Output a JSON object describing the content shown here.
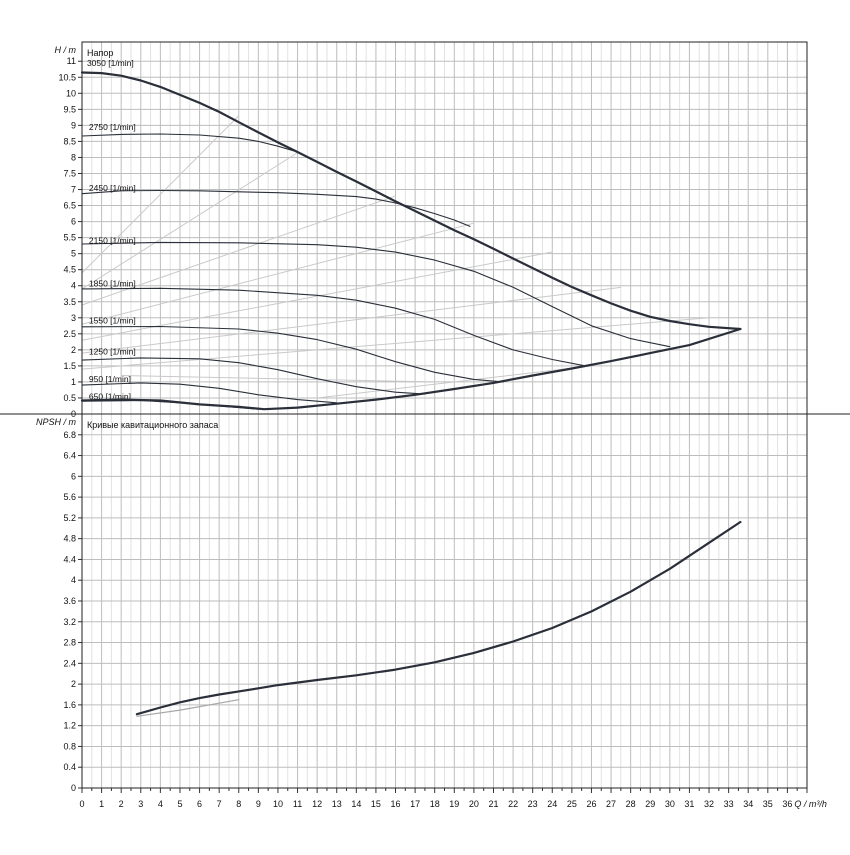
{
  "chart_data": [
    {
      "type": "line",
      "title": "Напор",
      "ylabel": "H / m",
      "xlabel": "Q / m³/h",
      "xlim": [
        0,
        37
      ],
      "ylim": [
        0,
        11.6
      ],
      "y_ticks": [
        0,
        0.5,
        1,
        1.5,
        2,
        2.5,
        3,
        3.5,
        4,
        4.5,
        5,
        5.5,
        6,
        6.5,
        7,
        7.5,
        8,
        8.5,
        9,
        9.5,
        10,
        10.5,
        11
      ],
      "grid": true,
      "series": [
        {
          "name": "3050 [1/min]",
          "label_at": [
            0.1,
            10.85
          ],
          "points": [
            [
              0,
              10.65
            ],
            [
              1,
              10.63
            ],
            [
              2,
              10.55
            ],
            [
              3,
              10.4
            ],
            [
              4,
              10.2
            ],
            [
              5,
              9.95
            ],
            [
              6,
              9.7
            ],
            [
              7,
              9.42
            ],
            [
              8,
              9.1
            ],
            [
              9,
              8.78
            ],
            [
              10,
              8.47
            ],
            [
              11,
              8.17
            ],
            [
              12,
              7.86
            ],
            [
              13,
              7.55
            ],
            [
              14,
              7.25
            ],
            [
              15,
              6.94
            ],
            [
              16,
              6.63
            ],
            [
              17,
              6.33
            ],
            [
              18,
              6.03
            ],
            [
              19,
              5.73
            ],
            [
              20,
              5.45
            ],
            [
              21,
              5.15
            ],
            [
              22,
              4.85
            ],
            [
              23,
              4.55
            ],
            [
              24,
              4.25
            ],
            [
              25,
              3.96
            ],
            [
              26,
              3.7
            ],
            [
              27,
              3.45
            ],
            [
              28,
              3.22
            ],
            [
              29,
              3.03
            ],
            [
              30,
              2.9
            ],
            [
              31,
              2.8
            ],
            [
              32,
              2.72
            ],
            [
              33.6,
              2.65
            ]
          ]
        },
        {
          "name": "2750 [1/min]",
          "label_at": [
            0.2,
            8.85
          ],
          "points": [
            [
              0,
              8.67
            ],
            [
              2,
              8.72
            ],
            [
              4,
              8.73
            ],
            [
              6,
              8.7
            ],
            [
              8,
              8.6
            ],
            [
              9,
              8.5
            ],
            [
              10,
              8.35
            ],
            [
              11,
              8.17
            ]
          ]
        },
        {
          "name": "2450 [1/min]",
          "label_at": [
            0.2,
            6.95
          ],
          "points": [
            [
              0,
              6.87
            ],
            [
              2,
              6.96
            ],
            [
              4,
              6.97
            ],
            [
              6,
              6.96
            ],
            [
              8,
              6.93
            ],
            [
              10,
              6.9
            ],
            [
              12,
              6.85
            ],
            [
              14,
              6.78
            ],
            [
              15,
              6.7
            ],
            [
              16,
              6.58
            ],
            [
              17,
              6.43
            ],
            [
              18,
              6.25
            ],
            [
              19,
              6.05
            ],
            [
              19.8,
              5.85
            ]
          ]
        },
        {
          "name": "2150 [1/min]",
          "label_at": [
            0.2,
            5.32
          ],
          "points": [
            [
              0,
              5.3
            ],
            [
              4,
              5.35
            ],
            [
              8,
              5.34
            ],
            [
              12,
              5.28
            ],
            [
              14,
              5.2
            ],
            [
              16,
              5.05
            ],
            [
              18,
              4.8
            ],
            [
              20,
              4.45
            ],
            [
              22,
              3.95
            ],
            [
              24,
              3.35
            ],
            [
              26,
              2.75
            ],
            [
              28,
              2.35
            ],
            [
              30,
              2.1
            ]
          ]
        },
        {
          "name": "1850 [1/min]",
          "label_at": [
            0.2,
            3.97
          ],
          "points": [
            [
              0,
              3.9
            ],
            [
              4,
              3.92
            ],
            [
              8,
              3.86
            ],
            [
              12,
              3.7
            ],
            [
              14,
              3.55
            ],
            [
              16,
              3.3
            ],
            [
              18,
              2.95
            ],
            [
              20,
              2.45
            ],
            [
              22,
              2.0
            ],
            [
              24,
              1.7
            ],
            [
              25.7,
              1.5
            ]
          ]
        },
        {
          "name": "1550 [1/min]",
          "label_at": [
            0.2,
            2.82
          ],
          "points": [
            [
              0,
              2.72
            ],
            [
              4,
              2.73
            ],
            [
              8,
              2.65
            ],
            [
              10,
              2.52
            ],
            [
              12,
              2.32
            ],
            [
              14,
              2.02
            ],
            [
              16,
              1.63
            ],
            [
              18,
              1.3
            ],
            [
              20,
              1.08
            ],
            [
              21.5,
              1.0
            ]
          ]
        },
        {
          "name": "1250 [1/min]",
          "label_at": [
            0.2,
            1.85
          ],
          "points": [
            [
              0,
              1.68
            ],
            [
              3,
              1.75
            ],
            [
              6,
              1.72
            ],
            [
              8,
              1.6
            ],
            [
              10,
              1.38
            ],
            [
              12,
              1.1
            ],
            [
              14,
              0.85
            ],
            [
              16,
              0.68
            ],
            [
              17.5,
              0.62
            ]
          ]
        },
        {
          "name": "950 [1/min]",
          "label_at": [
            0.2,
            1.0
          ],
          "points": [
            [
              0,
              0.9
            ],
            [
              3,
              0.97
            ],
            [
              5,
              0.93
            ],
            [
              7,
              0.8
            ],
            [
              9,
              0.6
            ],
            [
              11,
              0.45
            ],
            [
              13,
              0.35
            ]
          ]
        },
        {
          "name": "650 [1/min]",
          "label_at": [
            0.2,
            0.45
          ],
          "points": [
            [
              0,
              0.4
            ],
            [
              3,
              0.42
            ],
            [
              5,
              0.35
            ],
            [
              7,
              0.25
            ],
            [
              9,
              0.15
            ]
          ]
        },
        {
          "name": "",
          "points": [
            [
              0,
              0.42
            ],
            [
              2,
              0.45
            ],
            [
              4,
              0.42
            ],
            [
              6,
              0.3
            ],
            [
              8,
              0.22
            ],
            [
              9.3,
              0.15
            ],
            [
              11,
              0.2
            ],
            [
              13,
              0.32
            ],
            [
              15,
              0.45
            ],
            [
              17,
              0.6
            ],
            [
              19,
              0.78
            ],
            [
              21,
              0.97
            ],
            [
              23,
              1.2
            ],
            [
              25,
              1.42
            ],
            [
              27,
              1.65
            ],
            [
              29,
              1.9
            ],
            [
              31,
              2.15
            ],
            [
              33.6,
              2.65
            ]
          ]
        }
      ],
      "efficiency_lines": [
        [
          [
            0,
            4.4
          ],
          [
            8,
            9.3
          ]
        ],
        [
          [
            0,
            3.9
          ],
          [
            11,
            8.15
          ]
        ],
        [
          [
            0,
            3.4
          ],
          [
            16,
            6.8
          ]
        ],
        [
          [
            0,
            2.8
          ],
          [
            20,
            5.95
          ]
        ],
        [
          [
            0,
            2.3
          ],
          [
            24,
            5.05
          ]
        ],
        [
          [
            0,
            1.9
          ],
          [
            27.5,
            3.95
          ]
        ],
        [
          [
            0,
            1.4
          ],
          [
            32,
            3.0
          ]
        ],
        [
          [
            2,
            1.2
          ],
          [
            18,
            1.0
          ]
        ],
        [
          [
            12,
            0.5
          ],
          [
            26,
            1.5
          ]
        ]
      ]
    },
    {
      "type": "line",
      "title": "Кривые кавитационного запаса",
      "ylabel": "NPSH / m",
      "xlabel": "Q / m³/h",
      "xlim": [
        0,
        37
      ],
      "ylim": [
        0,
        7.2
      ],
      "y_ticks": [
        0,
        0.4,
        0.8,
        1.2,
        1.6,
        2,
        2.4,
        2.8,
        3.2,
        3.6,
        4,
        4.4,
        4.8,
        5.2,
        5.6,
        6,
        6.4,
        6.8
      ],
      "grid": true,
      "series": [
        {
          "name": "",
          "points": [
            [
              2.8,
              1.42
            ],
            [
              4,
              1.55
            ],
            [
              5,
              1.65
            ],
            [
              6,
              1.73
            ],
            [
              7,
              1.8
            ],
            [
              8,
              1.86
            ],
            [
              9,
              1.92
            ],
            [
              10,
              1.98
            ],
            [
              12,
              2.08
            ],
            [
              14,
              2.17
            ],
            [
              16,
              2.28
            ],
            [
              18,
              2.42
            ],
            [
              20,
              2.6
            ],
            [
              22,
              2.82
            ],
            [
              24,
              3.08
            ],
            [
              26,
              3.4
            ],
            [
              28,
              3.78
            ],
            [
              30,
              4.22
            ],
            [
              32,
              4.72
            ],
            [
              33.6,
              5.12
            ]
          ]
        },
        {
          "name": "",
          "points": [
            [
              2.8,
              1.38
            ],
            [
              5,
              1.5
            ],
            [
              8,
              1.7
            ]
          ]
        }
      ]
    }
  ],
  "x_axis": {
    "ticks": [
      0,
      1,
      2,
      3,
      4,
      5,
      6,
      7,
      8,
      9,
      10,
      11,
      12,
      13,
      14,
      15,
      16,
      17,
      18,
      19,
      20,
      21,
      22,
      23,
      24,
      25,
      26,
      27,
      28,
      29,
      30,
      31,
      32,
      33,
      34,
      35,
      36
    ],
    "unit_label": "Q / m³/h"
  }
}
